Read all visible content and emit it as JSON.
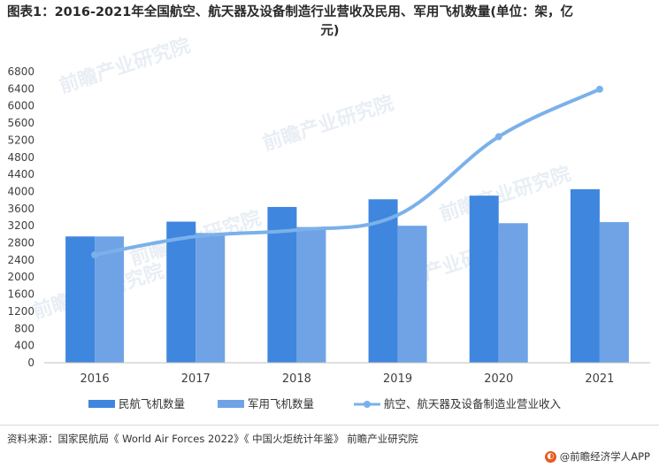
{
  "title": "图表1：2016-2021年全国航空、航天器及设备制造行业营收及民用、军用飞机数量(单位：架，亿元)",
  "title_line1": "图表1：2016-2021年全国航空、航天器及设备制造行业营收及民用、军用飞机数量(单位：架，亿",
  "title_line2": "元)",
  "watermark": "前瞻产业研究院",
  "source": "资料来源：国家民航局《 World Air Forces 2022》《 中国火炬统计年鉴》 前瞻产业研究院",
  "brand": "@前瞻经济学人APP",
  "brand_icon": "qianzhan-logo-icon",
  "colors": {
    "civil": "#3f86de",
    "military": "#6fa3e6",
    "revenue_line": "#7bb1ea",
    "axis": "#bfbfbf"
  },
  "chart_data": {
    "type": "bar+line",
    "categories": [
      "2016",
      "2017",
      "2018",
      "2019",
      "2020",
      "2021"
    ],
    "ylim": [
      0,
      6800
    ],
    "yticks": [
      0,
      400,
      800,
      1200,
      1600,
      2000,
      2400,
      2800,
      3200,
      3600,
      4000,
      4400,
      4800,
      5200,
      5600,
      6000,
      6400,
      6800
    ],
    "series": [
      {
        "name": "民航飞机数量",
        "type": "bar",
        "values": [
          2950,
          3296,
          3639,
          3818,
          3903,
          4054
        ]
      },
      {
        "name": "军用飞机数量",
        "type": "bar",
        "values": [
          2950,
          3030,
          3170,
          3200,
          3260,
          3285
        ]
      },
      {
        "name": "航空、航天器及设备制造业营业收入",
        "type": "line",
        "smooth": true,
        "values": [
          2520,
          2950,
          3100,
          3450,
          5280,
          6390
        ]
      }
    ],
    "legend_position": "bottom",
    "grid": false
  }
}
